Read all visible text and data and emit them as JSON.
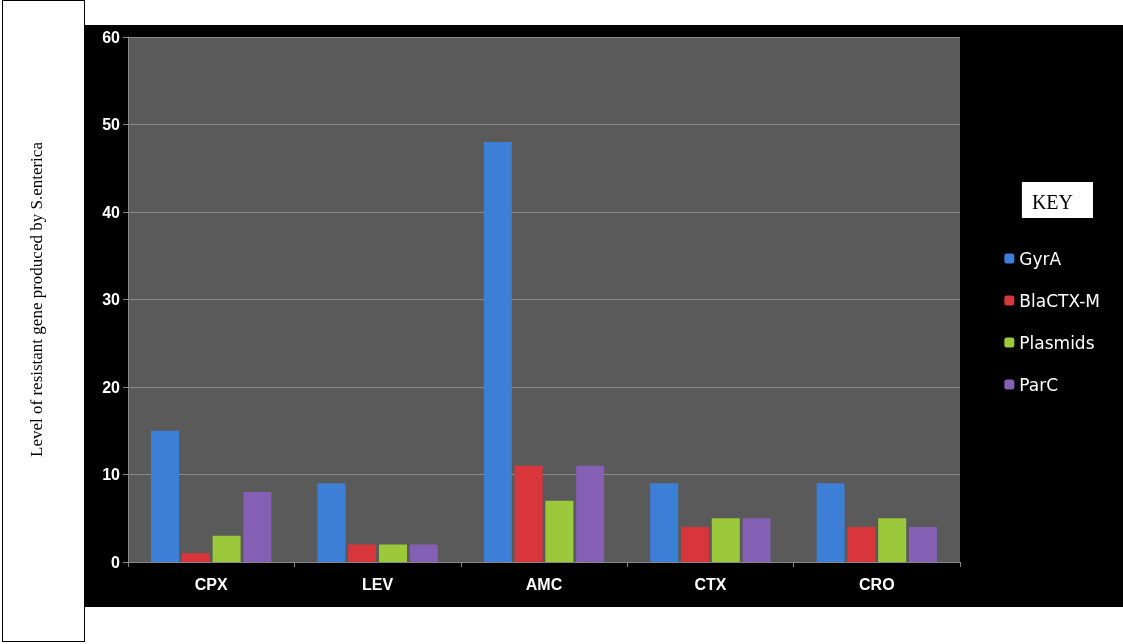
{
  "chart_data": {
    "type": "bar",
    "ylabel": "Level of resistant gene produced by S.enterica",
    "legend_title": "KEY",
    "categories": [
      "CPX",
      "LEV",
      "AMC",
      "CTX",
      "CRO"
    ],
    "series": [
      {
        "name": "GyrA",
        "color": "#3d7fd6",
        "values": [
          15,
          9,
          48,
          9,
          9
        ]
      },
      {
        "name": "BlaCTX-M",
        "color": "#d8363a",
        "values": [
          1,
          2,
          11,
          4,
          4
        ]
      },
      {
        "name": "Plasmids",
        "color": "#9cc93c",
        "values": [
          3,
          2,
          7,
          5,
          5
        ]
      },
      {
        "name": "ParC",
        "color": "#8460b4",
        "values": [
          8,
          2,
          11,
          5,
          4
        ]
      }
    ],
    "ylim": [
      0,
      60
    ],
    "yticks": [
      0,
      10,
      20,
      30,
      40,
      50,
      60
    ],
    "grid": "y",
    "legend": "right"
  }
}
